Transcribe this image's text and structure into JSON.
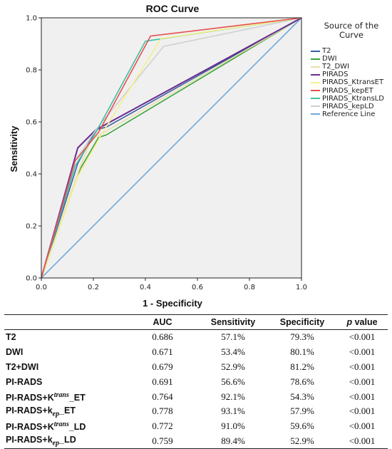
{
  "chart_data": {
    "type": "line",
    "title": "ROC Curve",
    "xlabel": "1 - Specificity",
    "ylabel": "Sensitivity",
    "xlim": [
      0,
      1
    ],
    "ylim": [
      0,
      1
    ],
    "xticks": [
      "0.0",
      "0.2",
      "0.4",
      "0.6",
      "0.8",
      "1.0"
    ],
    "yticks": [
      "0.0",
      "0.2",
      "0.4",
      "0.6",
      "0.8",
      "1.0"
    ],
    "grid": false,
    "background_color": "#f0f0f0",
    "legend_title": "Source of the Curve",
    "legend_position": "right",
    "series": [
      {
        "name": "T2",
        "color": "#3a5fa5",
        "x": [
          0,
          0.14,
          0.21,
          0.25,
          1
        ],
        "y": [
          0,
          0.44,
          0.57,
          0.58,
          1
        ]
      },
      {
        "name": "DWI",
        "color": "#3aa33a",
        "x": [
          0,
          0.15,
          0.22,
          0.25,
          1
        ],
        "y": [
          0,
          0.42,
          0.54,
          0.55,
          1
        ]
      },
      {
        "name": "T2_DWI",
        "color": "#e8e0a8",
        "x": [
          0,
          0.15,
          0.19,
          1
        ],
        "y": [
          0,
          0.43,
          0.53,
          1
        ]
      },
      {
        "name": "PIRADS",
        "color": "#6a2c91",
        "x": [
          0,
          0.14,
          0.21,
          1
        ],
        "y": [
          0,
          0.5,
          0.57,
          1
        ]
      },
      {
        "name": "PIRADS_KtransET",
        "color": "#f5f086",
        "x": [
          0,
          0.14,
          0.23,
          0.46,
          1
        ],
        "y": [
          0,
          0.39,
          0.55,
          0.92,
          1
        ]
      },
      {
        "name": "PIRADS_kepET",
        "color": "#e85050",
        "x": [
          0,
          0.13,
          0.22,
          0.42,
          1
        ],
        "y": [
          0,
          0.45,
          0.56,
          0.93,
          1
        ]
      },
      {
        "name": "PIRADS_KtransLD",
        "color": "#3fc19f",
        "x": [
          0,
          0.13,
          0.21,
          0.4,
          1
        ],
        "y": [
          0,
          0.43,
          0.56,
          0.91,
          1
        ]
      },
      {
        "name": "PIRADS_kepLD",
        "color": "#d0d0d0",
        "x": [
          0,
          0.13,
          0.21,
          0.47,
          1
        ],
        "y": [
          0,
          0.45,
          0.57,
          0.89,
          1
        ]
      },
      {
        "name": "Reference Line",
        "color": "#6fa8dc",
        "x": [
          0,
          1
        ],
        "y": [
          0,
          1
        ]
      }
    ]
  },
  "table": {
    "headers": [
      "",
      "AUC",
      "Sensitivity",
      "Specificity",
      "p",
      "value"
    ],
    "rows": [
      {
        "label": "T2",
        "label_sup": "",
        "label_suffix": "",
        "auc": "0.686",
        "sens": "57.1%",
        "spec": "79.3%",
        "p": "<0.001"
      },
      {
        "label": "DWI",
        "label_sup": "",
        "label_suffix": "",
        "auc": "0.671",
        "sens": "53.4%",
        "spec": "80.1%",
        "p": "<0.001"
      },
      {
        "label": "T2+DWI",
        "label_sup": "",
        "label_suffix": "",
        "auc": "0.679",
        "sens": "52.9%",
        "spec": "81.2%",
        "p": "<0.001"
      },
      {
        "label": "PI-RADS",
        "label_sup": "",
        "label_suffix": "",
        "auc": "0.691",
        "sens": "56.6%",
        "spec": "78.6%",
        "p": "<0.001"
      },
      {
        "label": "PI-RADS+K",
        "label_sup": "trans",
        "label_suffix": "_ET",
        "auc": "0.764",
        "sens": "92.1%",
        "spec": "54.3%",
        "p": "<0.001"
      },
      {
        "label": "PI-RADS+k",
        "label_sub": "ep",
        "label_suffix": "_ET",
        "auc": "0.778",
        "sens": "93.1%",
        "spec": "57.9%",
        "p": "<0.001"
      },
      {
        "label": "PI-RADS+K",
        "label_sup": "trans",
        "label_suffix": "_LD",
        "auc": "0.772",
        "sens": "91.0%",
        "spec": "59.6%",
        "p": "<0.001"
      },
      {
        "label": "PI-RADS+k",
        "label_sub": "ep",
        "label_suffix": "_LD",
        "auc": "0.759",
        "sens": "89.4%",
        "spec": "52.9%",
        "p": "<0.001"
      }
    ]
  }
}
